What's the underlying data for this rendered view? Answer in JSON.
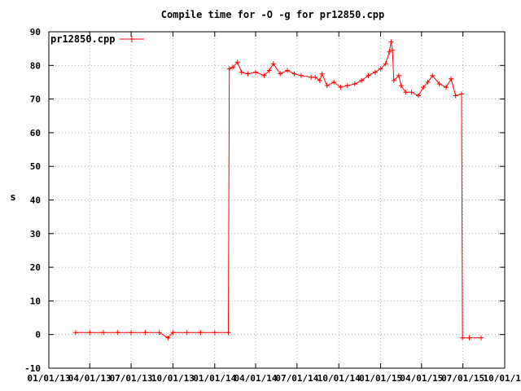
{
  "chart_data": {
    "type": "line",
    "title": "Compile time for -O -g for pr12850.cpp",
    "xlabel": "",
    "ylabel": "s",
    "ylim": [
      -10,
      90
    ],
    "yticks": [
      -10,
      0,
      10,
      20,
      30,
      40,
      50,
      60,
      70,
      80,
      90
    ],
    "xlim": [
      "2013-01-01",
      "2015-10-01"
    ],
    "xticks": [
      "01/01/13",
      "04/01/13",
      "07/01/13",
      "10/01/13",
      "01/01/14",
      "04/01/14",
      "07/01/14",
      "10/01/14",
      "01/01/15",
      "04/01/15",
      "07/01/15",
      "10/01/15"
    ],
    "grid": true,
    "legend_position": "top-left",
    "colors": {
      "series": "#ff0000",
      "axes": "#000000",
      "grid": "#a0a0a0"
    },
    "series": [
      {
        "name": "pr12850.cpp",
        "marker": "plus",
        "points": [
          [
            "2013-03-01",
            0.6
          ],
          [
            "2013-04-01",
            0.6
          ],
          [
            "2013-05-01",
            0.6
          ],
          [
            "2013-06-01",
            0.6
          ],
          [
            "2013-07-01",
            0.6
          ],
          [
            "2013-08-01",
            0.6
          ],
          [
            "2013-09-01",
            0.6
          ],
          [
            "2013-09-20",
            -1.0
          ],
          [
            "2013-10-01",
            0.6
          ],
          [
            "2013-11-01",
            0.6
          ],
          [
            "2013-12-01",
            0.6
          ],
          [
            "2014-01-01",
            0.6
          ],
          [
            "2014-01-31",
            0.6
          ],
          [
            "2014-02-02",
            79.0
          ],
          [
            "2014-02-10",
            79.5
          ],
          [
            "2014-02-20",
            81.0
          ],
          [
            "2014-03-01",
            78.0
          ],
          [
            "2014-03-15",
            77.5
          ],
          [
            "2014-04-01",
            78.0
          ],
          [
            "2014-04-20",
            77.0
          ],
          [
            "2014-05-01",
            78.5
          ],
          [
            "2014-05-10",
            80.5
          ],
          [
            "2014-05-25",
            77.5
          ],
          [
            "2014-06-10",
            78.5
          ],
          [
            "2014-06-25",
            77.5
          ],
          [
            "2014-07-10",
            77.0
          ],
          [
            "2014-08-01",
            76.5
          ],
          [
            "2014-08-10",
            76.5
          ],
          [
            "2014-08-20",
            75.5
          ],
          [
            "2014-08-25",
            77.5
          ],
          [
            "2014-09-05",
            74.0
          ],
          [
            "2014-09-20",
            75.0
          ],
          [
            "2014-10-05",
            73.5
          ],
          [
            "2014-10-20",
            74.0
          ],
          [
            "2014-11-05",
            74.5
          ],
          [
            "2014-11-20",
            75.5
          ],
          [
            "2014-12-05",
            77.0
          ],
          [
            "2014-12-20",
            78.0
          ],
          [
            "2015-01-01",
            79.0
          ],
          [
            "2015-01-12",
            80.5
          ],
          [
            "2015-01-20",
            84.0
          ],
          [
            "2015-01-24",
            87.0
          ],
          [
            "2015-01-27",
            84.5
          ],
          [
            "2015-01-30",
            75.5
          ],
          [
            "2015-02-10",
            77.0
          ],
          [
            "2015-02-15",
            74.0
          ],
          [
            "2015-02-25",
            72.0
          ],
          [
            "2015-03-10",
            72.0
          ],
          [
            "2015-03-25",
            71.0
          ],
          [
            "2015-04-05",
            73.5
          ],
          [
            "2015-04-15",
            75.0
          ],
          [
            "2015-04-25",
            77.0
          ],
          [
            "2015-05-10",
            74.5
          ],
          [
            "2015-05-25",
            73.5
          ],
          [
            "2015-06-05",
            76.0
          ],
          [
            "2015-06-15",
            71.0
          ],
          [
            "2015-06-28",
            71.5
          ],
          [
            "2015-06-30",
            -1.0
          ],
          [
            "2015-07-15",
            -1.0
          ],
          [
            "2015-08-10",
            -1.0
          ]
        ]
      }
    ]
  }
}
